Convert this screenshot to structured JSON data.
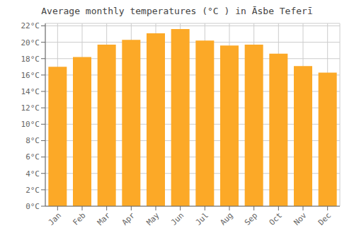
{
  "chart_data": {
    "type": "bar",
    "title": "Average monthly temperatures (°C ) in Āsbe Teferī",
    "categories": [
      "Jan",
      "Feb",
      "Mar",
      "Apr",
      "May",
      "Jun",
      "Jul",
      "Aug",
      "Sep",
      "Oct",
      "Nov",
      "Dec"
    ],
    "values": [
      17.0,
      18.2,
      19.7,
      20.3,
      21.1,
      21.6,
      20.2,
      19.6,
      19.7,
      18.6,
      17.1,
      16.3
    ],
    "color": "#FCA927",
    "ylim": [
      0,
      22.3
    ],
    "yticks": [
      {
        "value": 0,
        "label": "0°C"
      },
      {
        "value": 2,
        "label": "2°C"
      },
      {
        "value": 4,
        "label": "4°C"
      },
      {
        "value": 6,
        "label": "6°C"
      },
      {
        "value": 8,
        "label": "8°C"
      },
      {
        "value": 10,
        "label": "10°C"
      },
      {
        "value": 12,
        "label": "12°C"
      },
      {
        "value": 14,
        "label": "14°C"
      },
      {
        "value": 16,
        "label": "16°C"
      },
      {
        "value": 18,
        "label": "18°C"
      },
      {
        "value": 20,
        "label": "20°C"
      },
      {
        "value": 22,
        "label": "22°C"
      }
    ],
    "grid": true
  }
}
